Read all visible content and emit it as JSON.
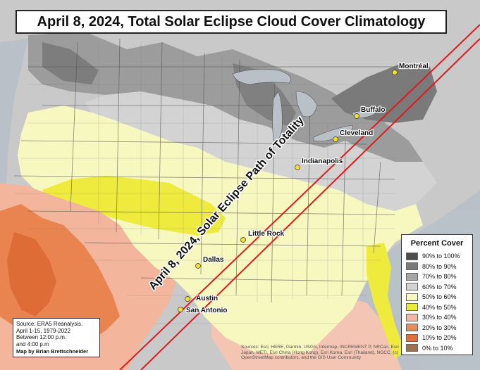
{
  "title": "April 8, 2024, Total Solar Eclipse Cloud Cover Climatology",
  "path_label": "April 8, 2024, Solar Eclipse Path of Totality",
  "cities": [
    {
      "name": "Montréal"
    },
    {
      "name": "Buffalo"
    },
    {
      "name": "Cleveland"
    },
    {
      "name": "Indianapolis"
    },
    {
      "name": "Little Rock"
    },
    {
      "name": "Dallas"
    },
    {
      "name": "Austin"
    },
    {
      "name": "San Antonio"
    }
  ],
  "legend": {
    "title": "Percent Cover",
    "items": [
      {
        "label": "90% to 100%",
        "color": "#4d4d4d"
      },
      {
        "label": "80% to 90%",
        "color": "#7a7a7a"
      },
      {
        "label": "70% to 80%",
        "color": "#a6a6a6"
      },
      {
        "label": "60% to 70%",
        "color": "#d3d3d3"
      },
      {
        "label": "50% to 60%",
        "color": "#f7f7c0"
      },
      {
        "label": "40% to 50%",
        "color": "#ecea3a"
      },
      {
        "label": "30% to 40%",
        "color": "#f4b69e"
      },
      {
        "label": "20% to 30%",
        "color": "#ec8a5e"
      },
      {
        "label": "10% to 20%",
        "color": "#e0703c"
      },
      {
        "label": "0% to 10%",
        "color": "#a0704a"
      }
    ]
  },
  "source": {
    "line1": "Source: ERA5 Reanalysis.",
    "line2": "April 1-15, 1979-2022",
    "line3": "Between 12:00 p.m.",
    "line4": "and 4:00 p.m",
    "author": "Map by Brian Brettschneider"
  },
  "credits": "Sources: Esri, HERE, Garmin, USGS, Intermap, INCREMENT P, NRCan, Esri Japan, METI, Esri China (Hong Kong), Esri Korea, Esri (Thailand), NGCC, (c) OpenStreetMap contributors, and the GIS User Community",
  "colors": {
    "path_line": "#e0191b",
    "city_marker": "#f2e02b",
    "ocean": "#b9c0c7"
  }
}
